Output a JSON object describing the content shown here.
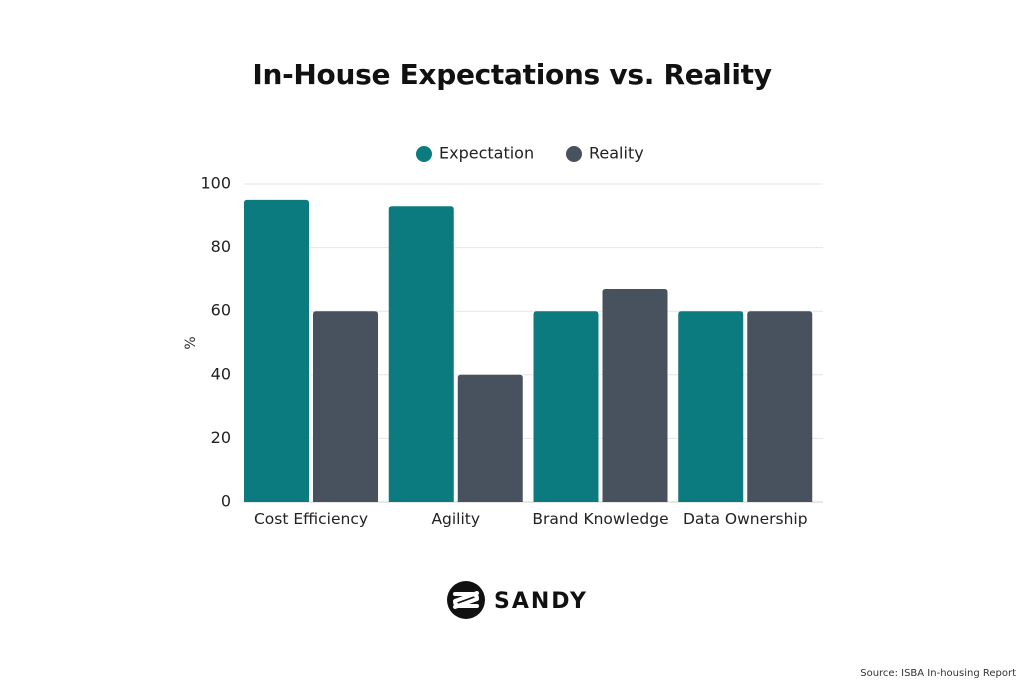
{
  "chart_data": {
    "type": "bar",
    "title": "In-House Expectations vs. Reality",
    "categories": [
      "Cost Efficiency",
      "Agility",
      "Brand Knowledge",
      "Data Ownership"
    ],
    "series": [
      {
        "name": "Expectation",
        "values": [
          95,
          93,
          60,
          60
        ],
        "color": "#0b7b80"
      },
      {
        "name": "Reality",
        "values": [
          60,
          40,
          67,
          60
        ],
        "color": "#47525e"
      }
    ],
    "ylabel": "%",
    "ylim": [
      0,
      100
    ],
    "yticks": [
      0,
      20,
      40,
      60,
      80,
      100
    ],
    "grid": true,
    "legend": "top"
  },
  "logo": {
    "text": "SANDY",
    "icon": "sandy-logo-icon"
  },
  "source": "Source: ISBA In-housing Report"
}
